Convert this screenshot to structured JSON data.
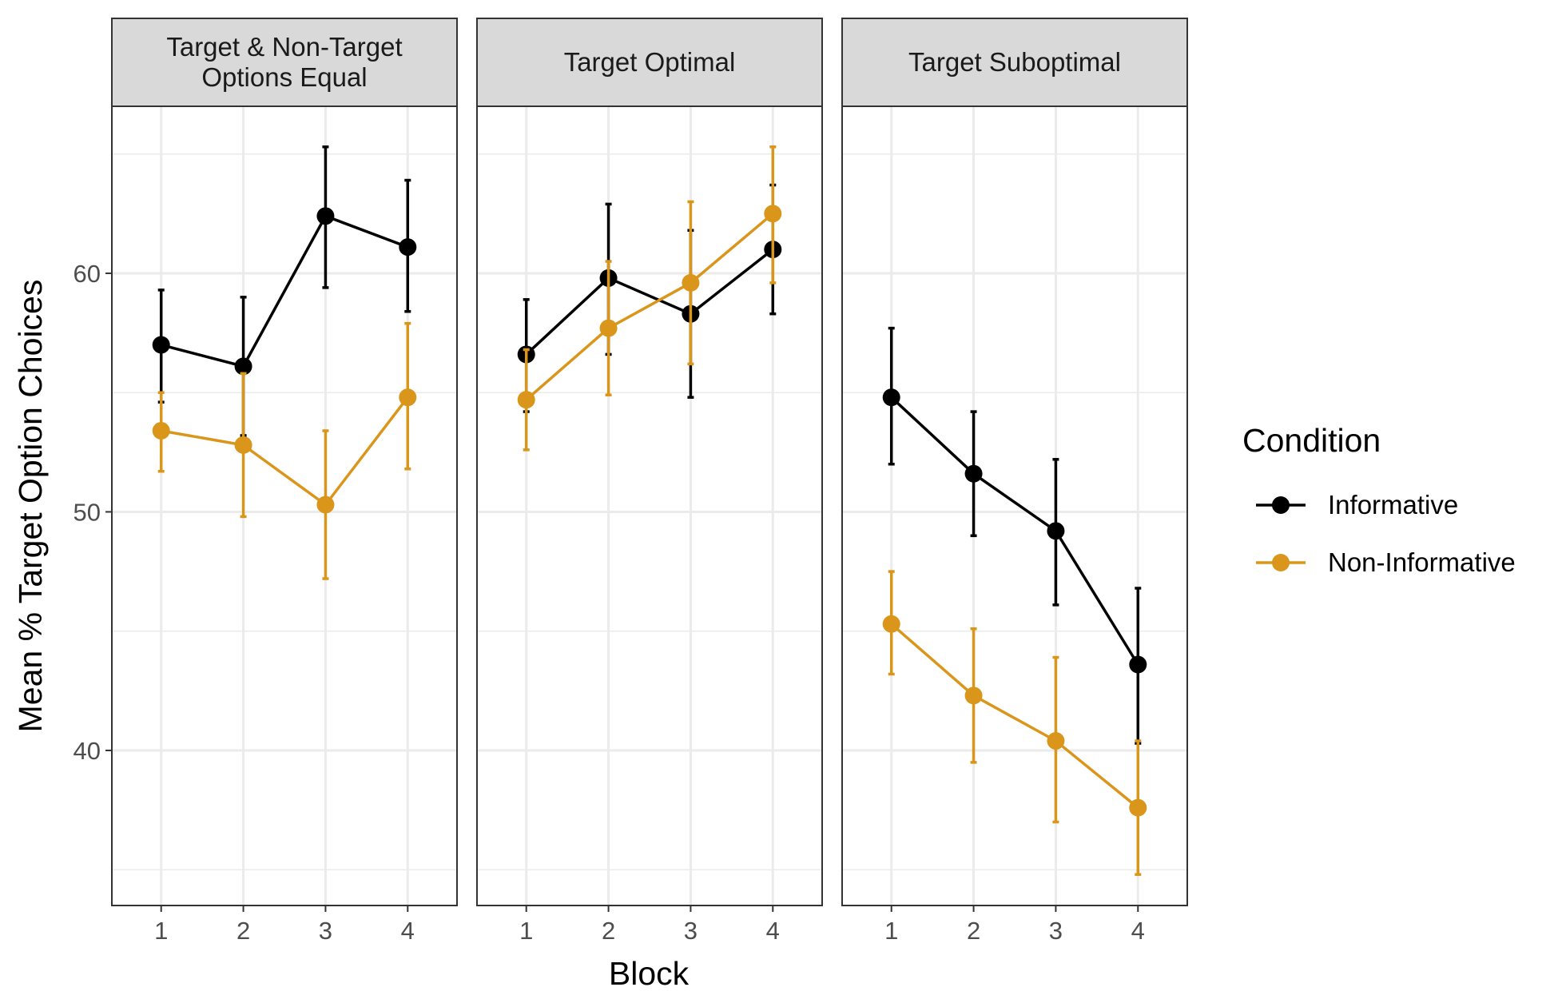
{
  "chart_data": {
    "type": "line",
    "facet_titles": [
      [
        "Target & Non-Target",
        "Options Equal"
      ],
      [
        "Target Optimal"
      ],
      [
        "Target Suboptimal"
      ]
    ],
    "x": [
      1,
      2,
      3,
      4
    ],
    "x_ticks": [
      "1",
      "2",
      "3",
      "4"
    ],
    "y_ticks": [
      40,
      50,
      60
    ],
    "y_tick_labels": [
      "40",
      "50",
      "60"
    ],
    "ylim": [
      33.5,
      67.0
    ],
    "xlabel": "Block",
    "ylabel": "Mean % Target Option Choices",
    "grid": true,
    "error_bars": true,
    "legend": {
      "title": "Condition",
      "placement": "right"
    },
    "series": [
      {
        "name": "Informative",
        "color": "#000000",
        "facets": [
          {
            "y": [
              57.0,
              56.1,
              62.4,
              61.1
            ],
            "lower": [
              54.6,
              53.2,
              59.4,
              58.4
            ],
            "upper": [
              59.3,
              59.0,
              65.3,
              63.9
            ]
          },
          {
            "y": [
              56.6,
              59.8,
              58.3,
              61.0
            ],
            "lower": [
              54.2,
              56.6,
              54.8,
              58.3
            ],
            "upper": [
              58.9,
              62.9,
              61.8,
              63.7
            ]
          },
          {
            "y": [
              54.8,
              51.6,
              49.2,
              43.6
            ],
            "lower": [
              52.0,
              49.0,
              46.1,
              40.3
            ],
            "upper": [
              57.7,
              54.2,
              52.2,
              46.8
            ]
          }
        ]
      },
      {
        "name": "Non-Informative",
        "color": "#D9961B",
        "facets": [
          {
            "y": [
              53.4,
              52.8,
              50.3,
              54.8
            ],
            "lower": [
              51.7,
              49.8,
              47.2,
              51.8
            ],
            "upper": [
              55.0,
              55.8,
              53.4,
              57.9
            ]
          },
          {
            "y": [
              54.7,
              57.7,
              59.6,
              62.5
            ],
            "lower": [
              52.6,
              54.9,
              56.2,
              59.6
            ],
            "upper": [
              56.8,
              60.5,
              63.0,
              65.3
            ]
          },
          {
            "y": [
              45.3,
              42.3,
              40.4,
              37.6
            ],
            "lower": [
              43.2,
              39.5,
              37.0,
              34.8
            ],
            "upper": [
              47.5,
              45.1,
              43.9,
              40.4
            ]
          }
        ]
      }
    ]
  }
}
